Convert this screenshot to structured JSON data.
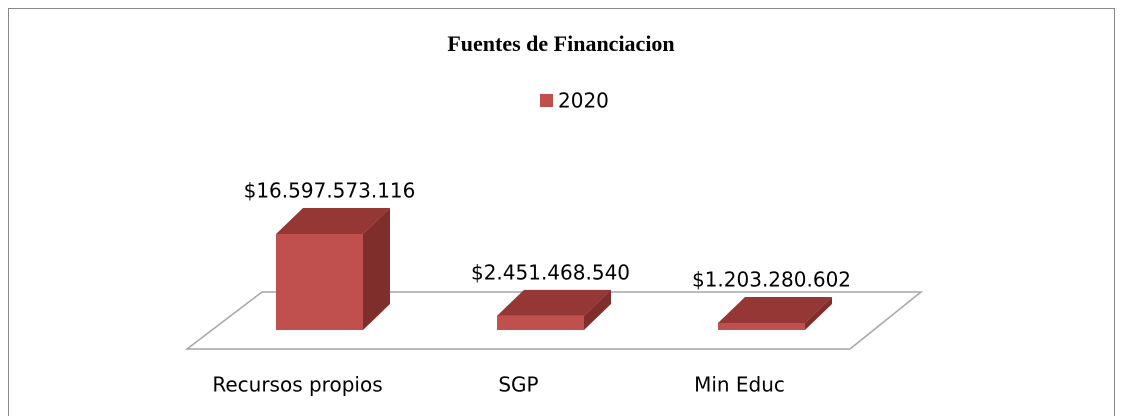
{
  "chart_data": {
    "type": "bar3d",
    "title": "Fuentes de Financiacion",
    "categories": [
      "Recursos propios",
      "SGP",
      "Min Educ"
    ],
    "series": [
      {
        "name": "2020",
        "color": "#c0504d",
        "values": [
          16597573116,
          2451468540,
          1203280602
        ],
        "value_labels": [
          "$16.597.573.116",
          "$2.451.468.540",
          "$1.203.280.602"
        ]
      }
    ]
  }
}
